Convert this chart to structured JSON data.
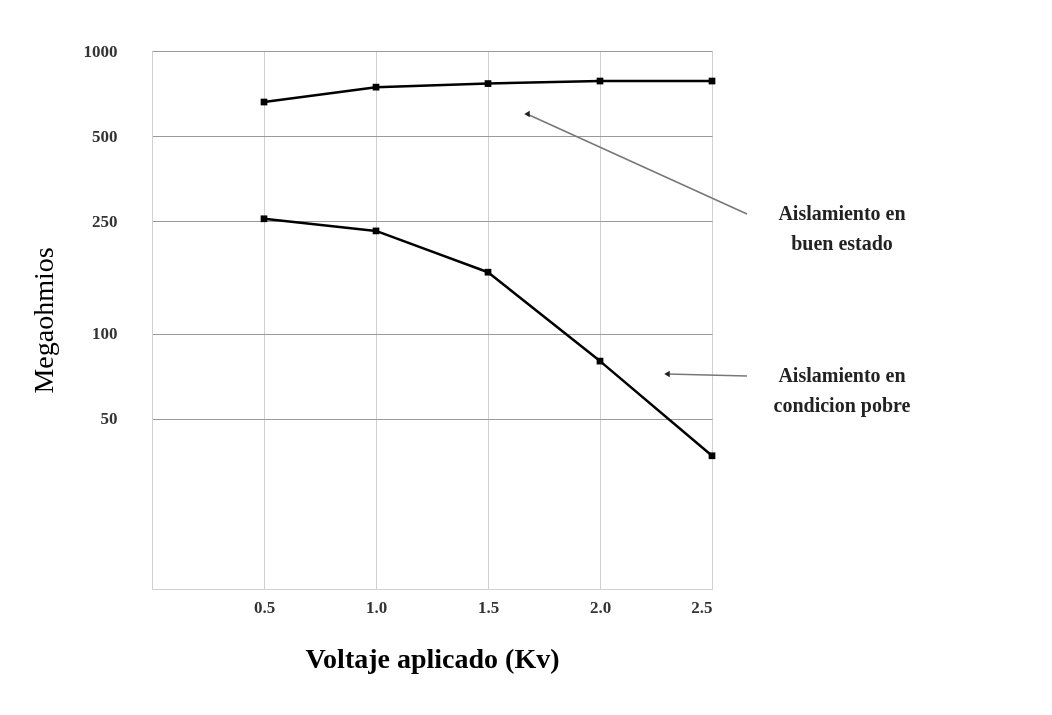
{
  "chart_data": {
    "type": "line",
    "xlabel": "Voltaje aplicado (Kv)",
    "ylabel": "Megaohmios",
    "x": [
      0.5,
      1.0,
      1.5,
      2.0,
      2.5
    ],
    "series": [
      {
        "color": "#000000",
        "values": [
          660,
          745,
          767,
          783,
          783
        ]
      },
      {
        "color": "#000000",
        "values": [
          255,
          231,
          165,
          80,
          37
        ]
      }
    ],
    "xlim": [
      0,
      2.5
    ],
    "xticks": [
      {
        "value": 0.5,
        "label": "0.5"
      },
      {
        "value": 1,
        "label": "1.0"
      },
      {
        "value": 1.5,
        "label": "1.5"
      },
      {
        "value": 2,
        "label": "2.0"
      },
      {
        "value": 2.5,
        "label": "2.5"
      }
    ],
    "ylim": [
      12.5,
      1000
    ],
    "log": true,
    "yticks": [
      50,
      100,
      250,
      500,
      1000
    ],
    "annotations": [
      "Aislamiento en\nbuen estado",
      "Aislamiento en\ncondicion pobre"
    ],
    "grid": true,
    "marker": "square",
    "line_style": "solid"
  }
}
